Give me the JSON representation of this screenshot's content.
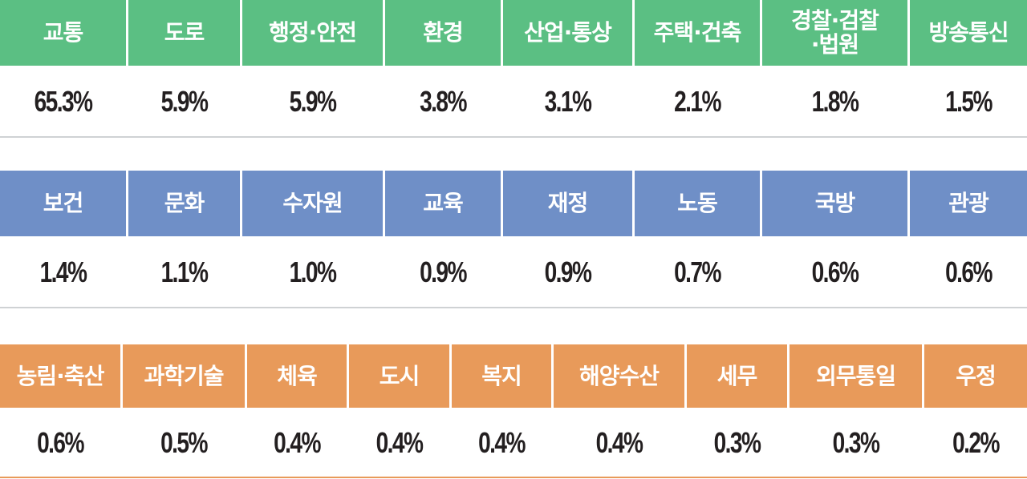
{
  "chart_data": {
    "type": "table",
    "groups": [
      {
        "color": "#5bbf83",
        "line_color": "#cfd2d4",
        "categories": [
          "교통",
          "도로",
          "행정·안전",
          "환경",
          "산업·통상",
          "주택·건축",
          "경찰·검찰\n·법원",
          "방송통신"
        ],
        "values": [
          "65.3%",
          "5.9%",
          "5.9%",
          "3.8%",
          "3.1%",
          "2.1%",
          "1.8%",
          "1.5%"
        ]
      },
      {
        "color": "#6f8fc7",
        "line_color": "#cfd2d4",
        "categories": [
          "보건",
          "문화",
          "수자원",
          "교육",
          "재정",
          "노동",
          "국방",
          "관광"
        ],
        "values": [
          "1.4%",
          "1.1%",
          "1.0%",
          "0.9%",
          "0.9%",
          "0.7%",
          "0.6%",
          "0.6%"
        ]
      },
      {
        "color": "#e89a5a",
        "line_color": "#e89a5a",
        "categories": [
          "농림·축산",
          "과학기술",
          "체육",
          "도시",
          "복지",
          "해양수산",
          "세무",
          "외무통일",
          "우정"
        ],
        "values": [
          "0.6%",
          "0.5%",
          "0.4%",
          "0.4%",
          "0.4%",
          "0.4%",
          "0.3%",
          "0.3%",
          "0.2%"
        ]
      }
    ]
  }
}
